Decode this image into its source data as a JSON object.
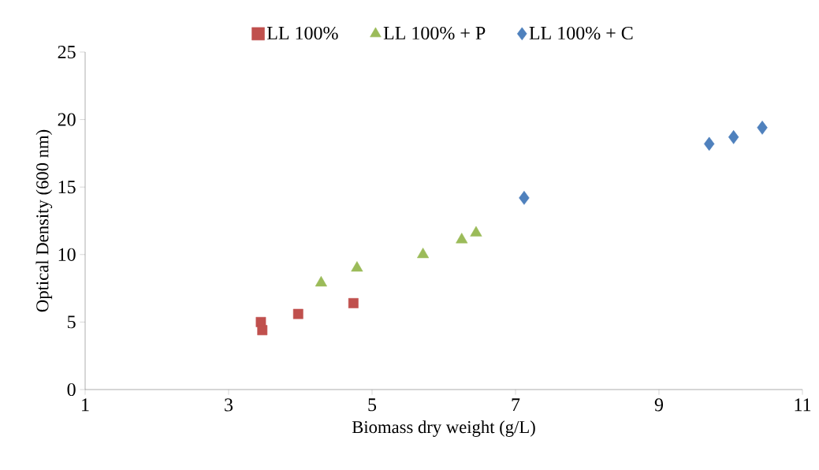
{
  "chart_data": {
    "type": "scatter",
    "xlabel": "Biomass dry weight (g/L)",
    "ylabel": "Optical Density  (600 nm)",
    "xlim": [
      1,
      11
    ],
    "xticks": [
      1,
      3,
      5,
      7,
      9,
      11
    ],
    "ylim": [
      0,
      25
    ],
    "yticks": [
      0,
      5,
      10,
      15,
      20,
      25
    ],
    "grid": false,
    "legend": "top",
    "series": [
      {
        "name": "LL 100%",
        "color": "#c0504d",
        "marker": "square",
        "x": [
          3.45,
          3.47,
          3.97,
          4.74
        ],
        "values": [
          5.0,
          4.4,
          5.6,
          6.4
        ]
      },
      {
        "name": "LL 100% + P",
        "color": "#9bbb59",
        "marker": "triangle",
        "x": [
          4.29,
          4.79,
          5.71,
          6.25,
          6.45
        ],
        "values": [
          7.9,
          9.0,
          10.0,
          11.1,
          11.6
        ]
      },
      {
        "name": "LL 100% + C",
        "color": "#4f81bd",
        "marker": "diamond",
        "x": [
          7.12,
          9.7,
          10.04,
          10.44
        ],
        "values": [
          14.2,
          18.2,
          18.7,
          19.4
        ]
      }
    ]
  }
}
